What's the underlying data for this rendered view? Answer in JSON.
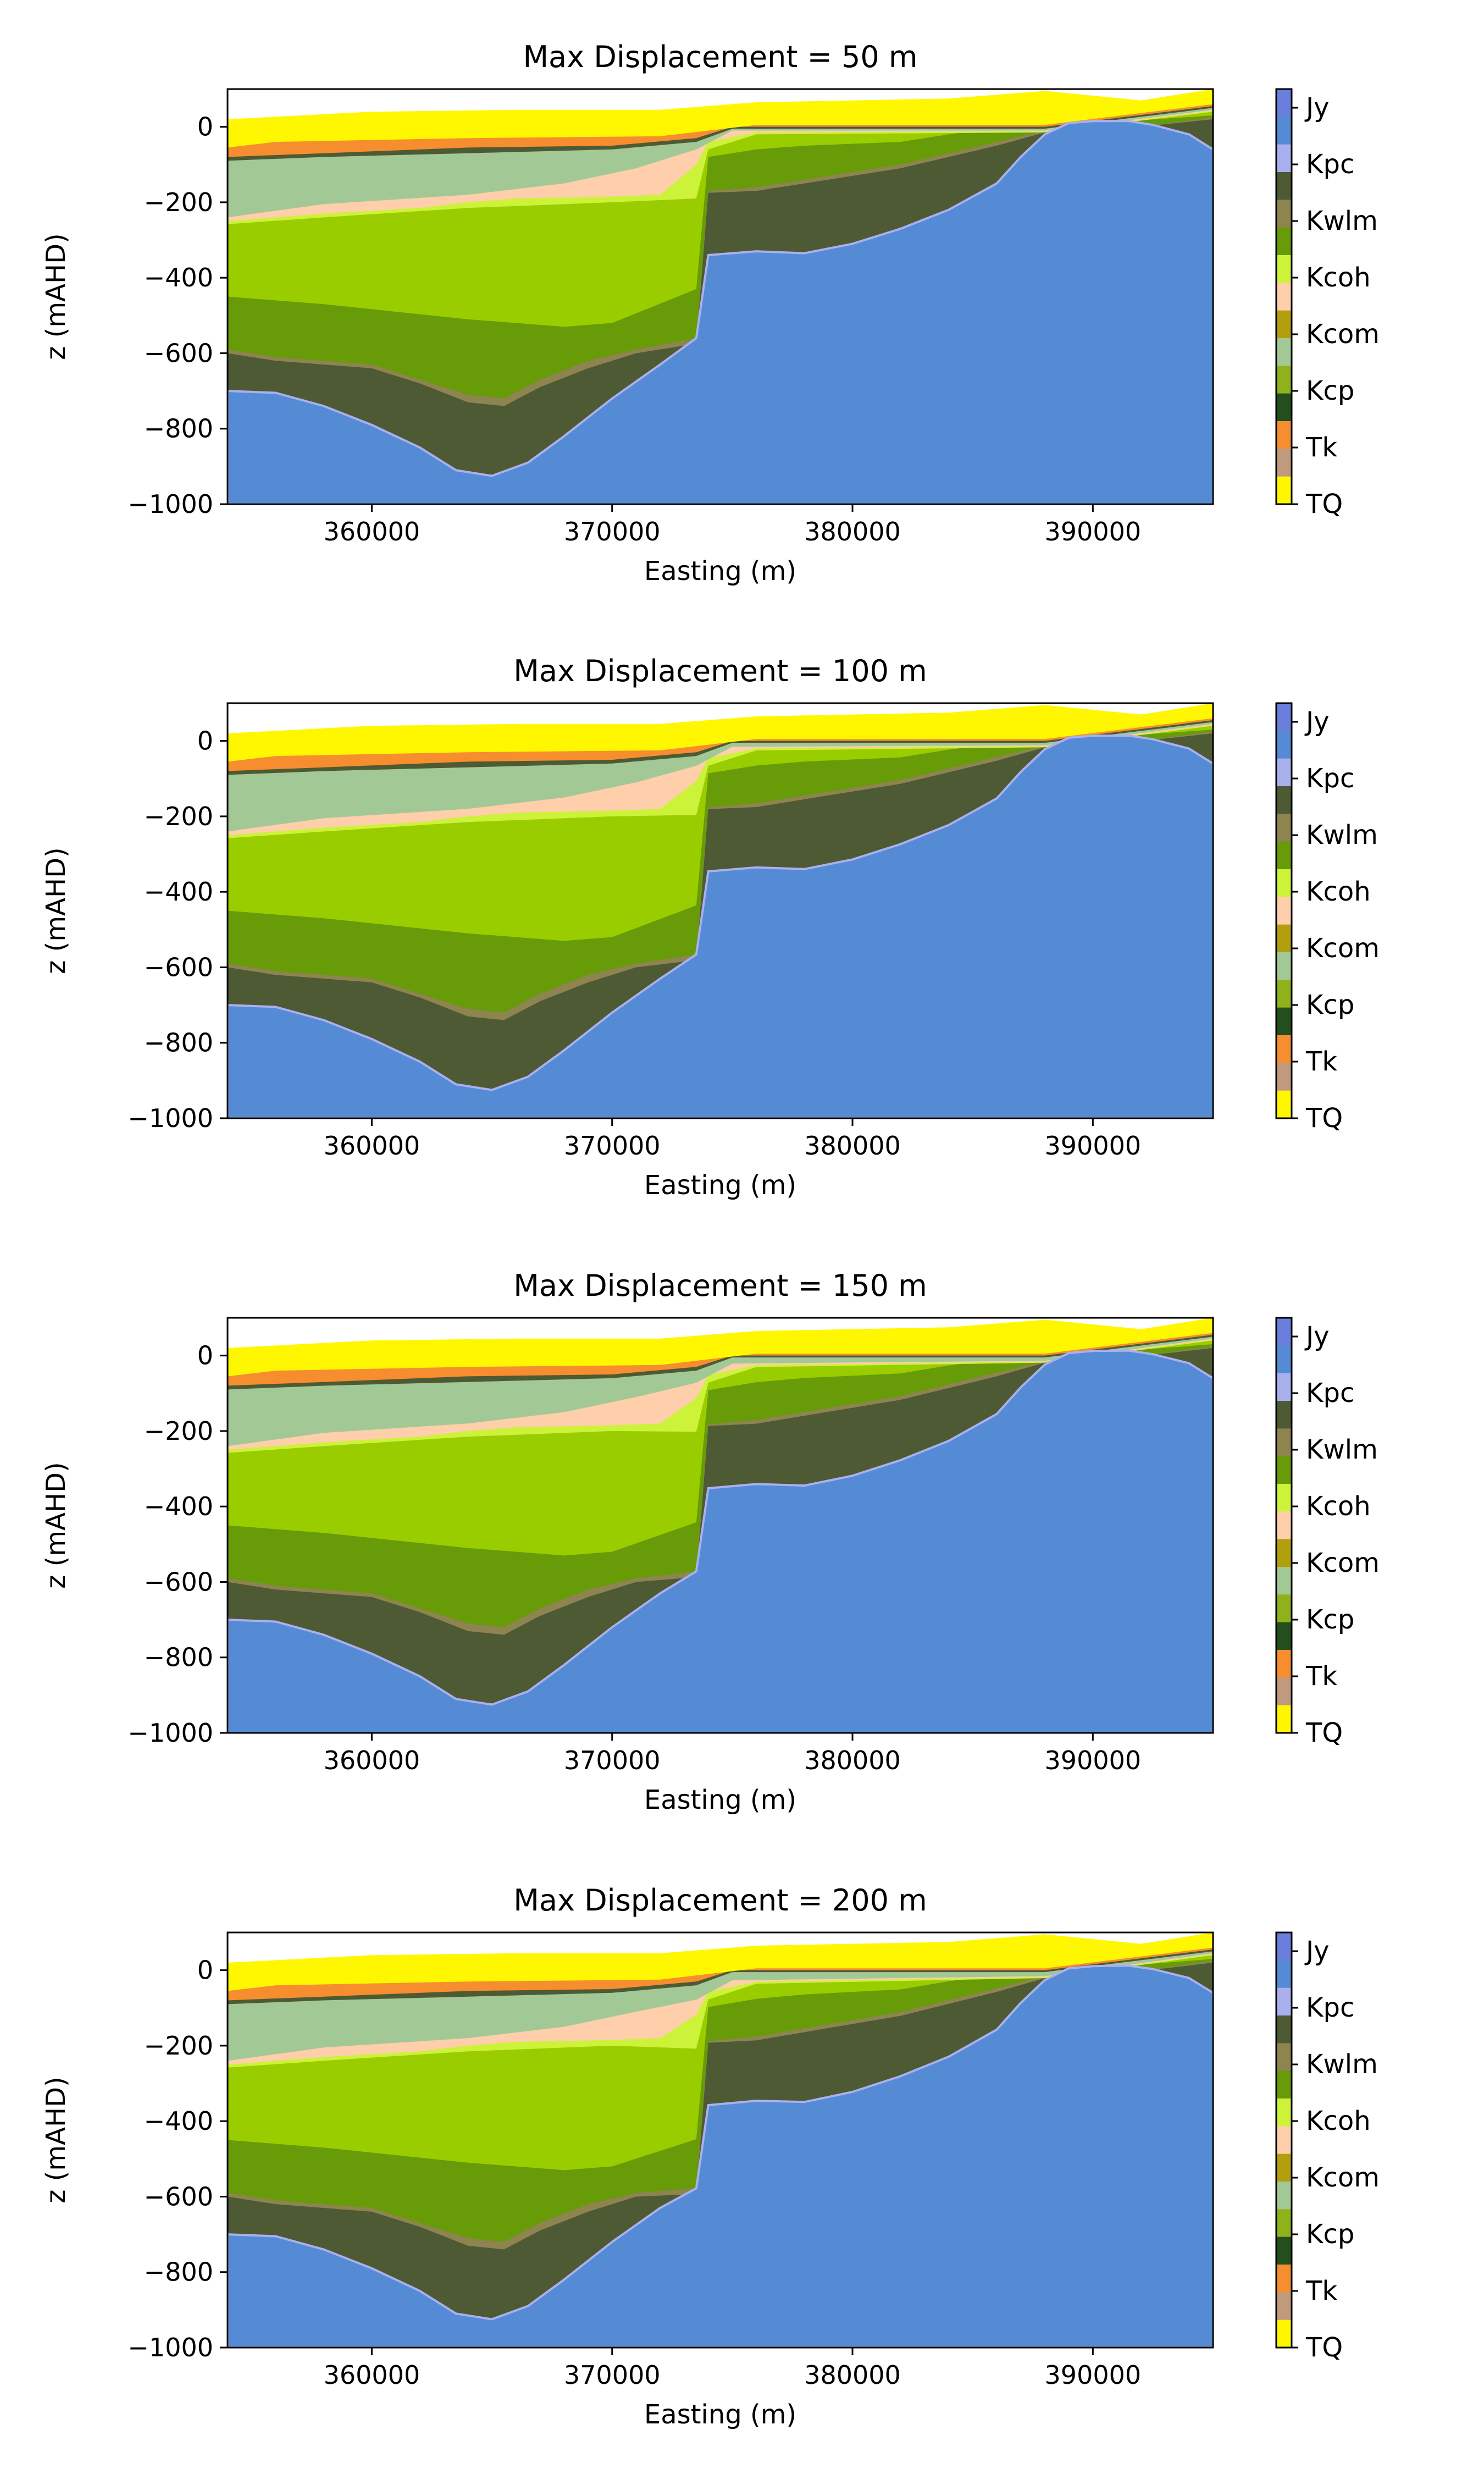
{
  "chart_data": {
    "type": "cross-section",
    "panels": [
      {
        "title": "Max Displacement = 50 m",
        "displacement": 50
      },
      {
        "title": "Max Displacement = 100 m",
        "displacement": 100
      },
      {
        "title": "Max Displacement = 150 m",
        "displacement": 150
      },
      {
        "title": "Max Displacement = 200 m",
        "displacement": 200
      }
    ],
    "xlabel": "Easting (m)",
    "ylabel": "z (mAHD)",
    "xlim": [
      354000,
      395000
    ],
    "ylim": [
      -1000,
      100
    ],
    "xticks": [
      360000,
      370000,
      380000,
      390000
    ],
    "yticks": [
      0,
      -200,
      -400,
      -600,
      -800,
      -1000
    ],
    "colorbar": {
      "labels": [
        "Jy",
        "Kpc",
        "Kwlm",
        "Kcoh",
        "Kcom",
        "Kcp",
        "Tk",
        "TQ"
      ],
      "segments": [
        {
          "color": "#6a7fdc"
        },
        {
          "color": "#558bd4"
        },
        {
          "color": "#aab0ee"
        },
        {
          "color": "#4d5a33"
        },
        {
          "color": "#8d8450"
        },
        {
          "color": "#679b08"
        },
        {
          "color": "#cdf23a"
        },
        {
          "color": "#ffceaa"
        },
        {
          "color": "#b29f0d"
        },
        {
          "color": "#a2c995"
        },
        {
          "color": "#8fb21a"
        },
        {
          "color": "#234f1e"
        },
        {
          "color": "#f68e2f"
        },
        {
          "color": "#c09a7d"
        },
        {
          "color": "#fff700"
        }
      ]
    },
    "units": [
      {
        "color": "#fff700",
        "base": [
          [
            354000,
            -55
          ],
          [
            356000,
            -40
          ],
          [
            364000,
            -30
          ],
          [
            372000,
            -25
          ],
          [
            376000,
            5
          ],
          [
            388000,
            5
          ],
          [
            395000,
            60
          ]
        ]
      },
      {
        "color": "#f68e2f",
        "base": [
          [
            354000,
            -80
          ],
          [
            358000,
            -70
          ],
          [
            364000,
            -55
          ],
          [
            370000,
            -50
          ],
          [
            373500,
            -30
          ],
          [
            375000,
            0
          ],
          [
            388000,
            0
          ],
          [
            395000,
            55
          ]
        ]
      },
      {
        "color": "#4d5a33",
        "base": [
          [
            354000,
            -90
          ],
          [
            358000,
            -80
          ],
          [
            364000,
            -70
          ],
          [
            370000,
            -60
          ],
          [
            373500,
            -40
          ],
          [
            375000,
            -5
          ],
          [
            388000,
            -5
          ],
          [
            395000,
            50
          ]
        ]
      },
      {
        "color": "#a2c995",
        "base": [
          [
            354000,
            -240
          ],
          [
            358000,
            -205
          ],
          [
            364000,
            -180
          ],
          [
            368000,
            -150
          ],
          [
            371000,
            -110
          ],
          [
            373500,
            -60
          ],
          [
            375000,
            -10
          ],
          [
            388000,
            -10
          ],
          [
            395000,
            45
          ]
        ]
      },
      {
        "color": "#ffceaa",
        "base": [
          [
            354000,
            -250
          ],
          [
            358000,
            -230
          ],
          [
            362000,
            -215
          ],
          [
            364000,
            -200
          ],
          [
            366000,
            -190
          ],
          [
            370000,
            -185
          ],
          [
            372000,
            -180
          ],
          [
            373500,
            -100
          ],
          [
            374000,
            -40
          ],
          [
            376000,
            -15
          ],
          [
            388000,
            -12
          ],
          [
            395000,
            42
          ]
        ]
      },
      {
        "color": "#cdf23a",
        "base": [
          [
            354000,
            -258
          ],
          [
            358000,
            -240
          ],
          [
            364000,
            -215
          ],
          [
            370000,
            -200
          ],
          [
            373500,
            -190
          ],
          [
            374000,
            -60
          ],
          [
            376000,
            -20
          ],
          [
            388000,
            -15
          ],
          [
            395000,
            40
          ]
        ]
      },
      {
        "color": "#9acd00",
        "base": [
          [
            354000,
            -450
          ],
          [
            358000,
            -470
          ],
          [
            364000,
            -510
          ],
          [
            368000,
            -530
          ],
          [
            370000,
            -520
          ],
          [
            373500,
            -430
          ],
          [
            374000,
            -80
          ],
          [
            376000,
            -60
          ],
          [
            378000,
            -50
          ],
          [
            382000,
            -40
          ],
          [
            384000,
            -20
          ],
          [
            386000,
            -5
          ],
          [
            388000,
            0
          ],
          [
            395000,
            30
          ]
        ]
      },
      {
        "color": "#679b08",
        "base": [
          [
            354000,
            -590
          ],
          [
            356000,
            -610
          ],
          [
            360000,
            -630
          ],
          [
            362000,
            -670
          ],
          [
            364000,
            -710
          ],
          [
            365500,
            -720
          ],
          [
            367000,
            -670
          ],
          [
            369000,
            -620
          ],
          [
            371000,
            -590
          ],
          [
            373500,
            -560
          ],
          [
            374000,
            -170
          ],
          [
            376000,
            -160
          ],
          [
            378000,
            -140
          ],
          [
            380000,
            -120
          ],
          [
            382000,
            -100
          ],
          [
            384000,
            -70
          ],
          [
            386000,
            -40
          ],
          [
            388000,
            -10
          ],
          [
            390000,
            0
          ],
          [
            392000,
            0
          ],
          [
            395000,
            25
          ]
        ]
      },
      {
        "color": "#8d8450",
        "base": [
          [
            354000,
            -600
          ],
          [
            356000,
            -620
          ],
          [
            360000,
            -640
          ],
          [
            362000,
            -680
          ],
          [
            364000,
            -730
          ],
          [
            365500,
            -740
          ],
          [
            367000,
            -690
          ],
          [
            369000,
            -640
          ],
          [
            371000,
            -600
          ],
          [
            373500,
            -575
          ],
          [
            374000,
            -175
          ],
          [
            376000,
            -170
          ],
          [
            378000,
            -150
          ],
          [
            380000,
            -130
          ],
          [
            382000,
            -110
          ],
          [
            384000,
            -80
          ],
          [
            386000,
            -50
          ],
          [
            388000,
            -15
          ],
          [
            390000,
            0
          ],
          [
            392000,
            0
          ],
          [
            395000,
            20
          ]
        ]
      },
      {
        "color": "#4d5a33",
        "base": [
          [
            354000,
            -700
          ],
          [
            356000,
            -705
          ],
          [
            358000,
            -740
          ],
          [
            360000,
            -790
          ],
          [
            362000,
            -850
          ],
          [
            363500,
            -910
          ],
          [
            365000,
            -925
          ],
          [
            366500,
            -890
          ],
          [
            368000,
            -820
          ],
          [
            370000,
            -720
          ],
          [
            372000,
            -630
          ],
          [
            373500,
            -560
          ],
          [
            374000,
            -340
          ],
          [
            376000,
            -330
          ],
          [
            378000,
            -335
          ],
          [
            380000,
            -310
          ],
          [
            382000,
            -270
          ],
          [
            384000,
            -220
          ],
          [
            386000,
            -150
          ],
          [
            387000,
            -80
          ],
          [
            388000,
            -20
          ],
          [
            389000,
            10
          ],
          [
            390000,
            15
          ],
          [
            391500,
            15
          ],
          [
            392500,
            5
          ],
          [
            394000,
            -20
          ],
          [
            395000,
            -60
          ]
        ]
      },
      {
        "color": "#558bd4",
        "base": [
          [
            354000,
            -1000
          ],
          [
            395000,
            -1000
          ]
        ]
      }
    ]
  }
}
